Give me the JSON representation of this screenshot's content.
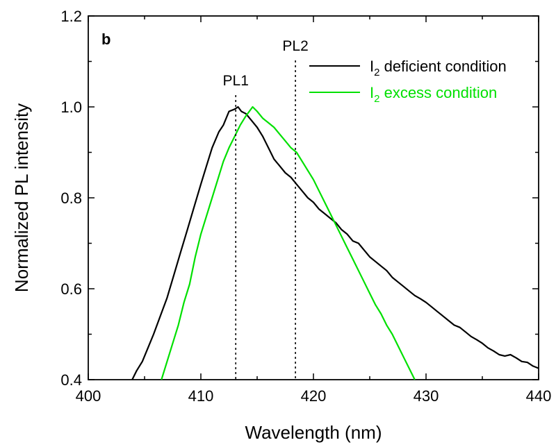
{
  "chart_data": {
    "type": "line",
    "panel_label": "b",
    "xlabel": "Wavelength (nm)",
    "ylabel": "Normalized PL intensity",
    "xlim": [
      400,
      440
    ],
    "ylim": [
      0.4,
      1.2
    ],
    "xticks": [
      400,
      410,
      420,
      430,
      440
    ],
    "yticks": [
      0.4,
      0.6,
      0.8,
      1.0,
      1.2
    ],
    "xtick_labels": [
      "400",
      "410",
      "420",
      "430",
      "440"
    ],
    "ytick_labels": [
      "0.4",
      "0.6",
      "0.8",
      "1.0",
      "1.2"
    ],
    "grid": false,
    "legend_position": "top-right",
    "annotations": [
      {
        "label": "PL1",
        "x": 413.1
      },
      {
        "label": "PL2",
        "x": 418.4
      }
    ],
    "series": [
      {
        "legend_main": "I",
        "legend_sub": "2",
        "legend_rest": " deficient condition",
        "color": "#000000",
        "points": [
          [
            403.9,
            0.4
          ],
          [
            404.3,
            0.42
          ],
          [
            404.8,
            0.44
          ],
          [
            405.3,
            0.47
          ],
          [
            405.8,
            0.5
          ],
          [
            406.4,
            0.54
          ],
          [
            407.0,
            0.58
          ],
          [
            407.6,
            0.63
          ],
          [
            408.2,
            0.68
          ],
          [
            408.8,
            0.73
          ],
          [
            409.4,
            0.78
          ],
          [
            410.0,
            0.83
          ],
          [
            410.5,
            0.87
          ],
          [
            411.0,
            0.91
          ],
          [
            411.6,
            0.945
          ],
          [
            412.0,
            0.96
          ],
          [
            412.5,
            0.99
          ],
          [
            413.0,
            0.995
          ],
          [
            413.3,
            1.0
          ],
          [
            413.6,
            0.99
          ],
          [
            414.0,
            0.985
          ],
          [
            414.5,
            0.97
          ],
          [
            415.0,
            0.955
          ],
          [
            415.5,
            0.935
          ],
          [
            416.0,
            0.91
          ],
          [
            416.5,
            0.885
          ],
          [
            417.0,
            0.87
          ],
          [
            417.5,
            0.855
          ],
          [
            418.0,
            0.845
          ],
          [
            418.5,
            0.83
          ],
          [
            419.0,
            0.815
          ],
          [
            419.5,
            0.8
          ],
          [
            420.0,
            0.79
          ],
          [
            420.5,
            0.775
          ],
          [
            421.0,
            0.765
          ],
          [
            421.5,
            0.755
          ],
          [
            422.0,
            0.745
          ],
          [
            422.5,
            0.73
          ],
          [
            423.0,
            0.72
          ],
          [
            423.5,
            0.705
          ],
          [
            424.0,
            0.7
          ],
          [
            424.5,
            0.685
          ],
          [
            425.0,
            0.67
          ],
          [
            425.5,
            0.66
          ],
          [
            426.0,
            0.65
          ],
          [
            426.5,
            0.64
          ],
          [
            427.0,
            0.625
          ],
          [
            427.5,
            0.615
          ],
          [
            428.0,
            0.605
          ],
          [
            428.5,
            0.595
          ],
          [
            429.0,
            0.585
          ],
          [
            429.5,
            0.578
          ],
          [
            430.0,
            0.57
          ],
          [
            430.5,
            0.56
          ],
          [
            431.0,
            0.55
          ],
          [
            431.5,
            0.54
          ],
          [
            432.0,
            0.53
          ],
          [
            432.5,
            0.52
          ],
          [
            433.0,
            0.515
          ],
          [
            433.5,
            0.505
          ],
          [
            434.0,
            0.495
          ],
          [
            434.5,
            0.488
          ],
          [
            435.0,
            0.48
          ],
          [
            435.5,
            0.47
          ],
          [
            436.0,
            0.463
          ],
          [
            436.5,
            0.455
          ],
          [
            437.0,
            0.452
          ],
          [
            437.5,
            0.455
          ],
          [
            438.0,
            0.448
          ],
          [
            438.5,
            0.44
          ],
          [
            439.0,
            0.438
          ],
          [
            439.5,
            0.43
          ],
          [
            440.0,
            0.425
          ]
        ]
      },
      {
        "legend_main": "I",
        "legend_sub": "2",
        "legend_rest": " excess condition",
        "color": "#00e000",
        "points": [
          [
            406.5,
            0.4
          ],
          [
            407.0,
            0.44
          ],
          [
            407.5,
            0.48
          ],
          [
            408.0,
            0.52
          ],
          [
            408.5,
            0.57
          ],
          [
            409.0,
            0.61
          ],
          [
            409.5,
            0.67
          ],
          [
            410.0,
            0.72
          ],
          [
            410.5,
            0.76
          ],
          [
            411.0,
            0.8
          ],
          [
            411.5,
            0.84
          ],
          [
            412.0,
            0.88
          ],
          [
            412.5,
            0.91
          ],
          [
            413.0,
            0.935
          ],
          [
            413.5,
            0.96
          ],
          [
            414.0,
            0.98
          ],
          [
            414.3,
            0.99
          ],
          [
            414.6,
            1.0
          ],
          [
            415.0,
            0.99
          ],
          [
            415.5,
            0.975
          ],
          [
            416.0,
            0.965
          ],
          [
            416.5,
            0.955
          ],
          [
            417.0,
            0.94
          ],
          [
            417.5,
            0.925
          ],
          [
            418.0,
            0.91
          ],
          [
            418.5,
            0.9
          ],
          [
            419.0,
            0.88
          ],
          [
            419.5,
            0.86
          ],
          [
            420.0,
            0.84
          ],
          [
            420.5,
            0.815
          ],
          [
            421.0,
            0.79
          ],
          [
            421.5,
            0.765
          ],
          [
            422.0,
            0.74
          ],
          [
            422.5,
            0.715
          ],
          [
            423.0,
            0.69
          ],
          [
            423.5,
            0.665
          ],
          [
            424.0,
            0.64
          ],
          [
            424.5,
            0.615
          ],
          [
            425.0,
            0.59
          ],
          [
            425.5,
            0.565
          ],
          [
            426.0,
            0.545
          ],
          [
            426.5,
            0.52
          ],
          [
            427.0,
            0.5
          ],
          [
            427.5,
            0.475
          ],
          [
            428.0,
            0.45
          ],
          [
            428.5,
            0.425
          ],
          [
            429.0,
            0.4
          ]
        ]
      }
    ]
  }
}
